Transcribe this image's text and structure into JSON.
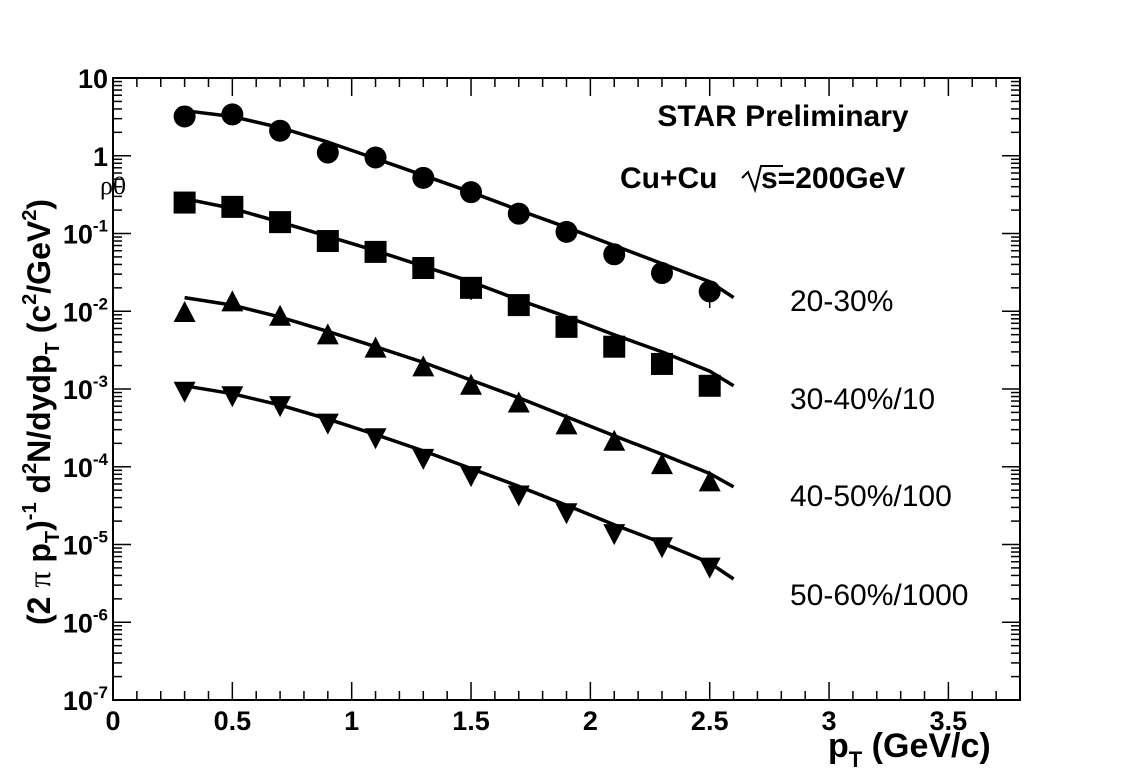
{
  "chart_data": {
    "type": "scatter",
    "title": "",
    "xlabel": "p_T (GeV/c)",
    "xlabel_main": "p",
    "xlabel_sub": "T",
    "xlabel_unit": " (GeV/c)",
    "ylabel": "(2 π p_T)^-1 d^2N/dydp_T (c^2/GeV^2)",
    "xlim": [
      0,
      3.8
    ],
    "ylim": [
      1e-07,
      10
    ],
    "yscale": "log",
    "grid": false,
    "x_ticks": [
      {
        "value": 0,
        "label": "0"
      },
      {
        "value": 0.5,
        "label": "0.5"
      },
      {
        "value": 1,
        "label": "1"
      },
      {
        "value": 1.5,
        "label": "1.5"
      },
      {
        "value": 2,
        "label": "2"
      },
      {
        "value": 2.5,
        "label": "2.5"
      },
      {
        "value": 3,
        "label": "3"
      },
      {
        "value": 3.5,
        "label": "3.5"
      }
    ],
    "y_ticks": [
      {
        "exp": 1,
        "label": "10",
        "sup": ""
      },
      {
        "exp": 0,
        "label": "1",
        "sup": ""
      },
      {
        "exp": -1,
        "label": "10",
        "sup": "-1"
      },
      {
        "exp": -2,
        "label": "10",
        "sup": "-2"
      },
      {
        "exp": -3,
        "label": "10",
        "sup": "-3"
      },
      {
        "exp": -4,
        "label": "10",
        "sup": "-4"
      },
      {
        "exp": -5,
        "label": "10",
        "sup": "-5"
      },
      {
        "exp": -6,
        "label": "10",
        "sup": "-6"
      },
      {
        "exp": -7,
        "label": "10",
        "sup": "-7"
      }
    ],
    "annotations": {
      "experiment": "STAR Preliminary",
      "system": "Cu+Cu",
      "energy": "s=200GeV",
      "particle": "ρ0"
    },
    "series": [
      {
        "name": "20-30%",
        "marker": "circle",
        "x": [
          0.3,
          0.5,
          0.7,
          0.9,
          1.1,
          1.3,
          1.5,
          1.7,
          1.9,
          2.1,
          2.3,
          2.5
        ],
        "y": [
          3.2,
          3.4,
          2.1,
          1.1,
          0.95,
          0.52,
          0.34,
          0.18,
          0.105,
          0.054,
          0.031,
          0.018
        ],
        "err": [
          0,
          0,
          0,
          0,
          0,
          0,
          0,
          0,
          0,
          0,
          0,
          0.007
        ],
        "fit_x": [
          0.3,
          0.5,
          0.7,
          0.9,
          1.1,
          1.3,
          1.5,
          1.7,
          1.9,
          2.1,
          2.3,
          2.5,
          2.6
        ],
        "fit_y": [
          3.8,
          3.2,
          2.3,
          1.5,
          0.92,
          0.56,
          0.34,
          0.2,
          0.12,
          0.07,
          0.041,
          0.024,
          0.015
        ]
      },
      {
        "name": "30-40%/10",
        "marker": "square",
        "x": [
          0.3,
          0.5,
          0.7,
          0.9,
          1.1,
          1.3,
          1.5,
          1.7,
          1.9,
          2.1,
          2.3,
          2.5
        ],
        "y": [
          0.25,
          0.22,
          0.14,
          0.08,
          0.058,
          0.036,
          0.02,
          0.012,
          0.0063,
          0.0035,
          0.0021,
          0.0011
        ],
        "err": [
          0,
          0,
          0,
          0,
          0,
          0,
          0.006,
          0,
          0,
          0,
          0,
          0
        ],
        "fit_x": [
          0.3,
          0.5,
          0.7,
          0.9,
          1.1,
          1.3,
          1.5,
          1.7,
          1.9,
          2.1,
          2.3,
          2.5,
          2.6
        ],
        "fit_y": [
          0.28,
          0.21,
          0.14,
          0.092,
          0.06,
          0.038,
          0.024,
          0.014,
          0.0085,
          0.005,
          0.003,
          0.0017,
          0.0011
        ]
      },
      {
        "name": "40-50%/100",
        "marker": "triangle-up",
        "x": [
          0.3,
          0.5,
          0.7,
          0.9,
          1.1,
          1.3,
          1.5,
          1.7,
          1.9,
          2.1,
          2.3,
          2.5
        ],
        "y": [
          0.0095,
          0.013,
          0.0085,
          0.0049,
          0.0033,
          0.0019,
          0.0011,
          0.00065,
          0.00034,
          0.00021,
          0.000105,
          6.3e-05
        ],
        "err": [
          0,
          0,
          0,
          0,
          0,
          0,
          0,
          0,
          0,
          0,
          0,
          0
        ],
        "fit_x": [
          0.3,
          0.5,
          0.7,
          0.9,
          1.1,
          1.3,
          1.5,
          1.7,
          1.9,
          2.1,
          2.3,
          2.5,
          2.6
        ],
        "fit_y": [
          0.015,
          0.012,
          0.0084,
          0.0055,
          0.0035,
          0.0022,
          0.0013,
          0.00077,
          0.00044,
          0.00025,
          0.000145,
          8.2e-05,
          5.5e-05
        ]
      },
      {
        "name": "50-60%/1000",
        "marker": "triangle-down",
        "x": [
          0.3,
          0.5,
          0.7,
          0.9,
          1.1,
          1.3,
          1.5,
          1.7,
          1.9,
          2.1,
          2.3,
          2.5
        ],
        "y": [
          0.00095,
          0.00083,
          0.00062,
          0.00037,
          0.00024,
          0.00013,
          7.8e-05,
          4.4e-05,
          2.6e-05,
          1.4e-05,
          9.5e-06,
          5.2e-06
        ],
        "err": [
          0,
          0,
          0,
          0,
          0,
          0,
          0,
          0,
          0,
          0,
          0,
          0
        ],
        "fit_x": [
          0.3,
          0.5,
          0.7,
          0.9,
          1.1,
          1.3,
          1.5,
          1.7,
          1.9,
          2.1,
          2.3,
          2.5,
          2.6
        ],
        "fit_y": [
          0.0011,
          0.00087,
          0.00062,
          0.00041,
          0.00026,
          0.00016,
          9.5e-05,
          5.6e-05,
          3.2e-05,
          1.8e-05,
          1.05e-05,
          5.8e-06,
          3.6e-06
        ]
      }
    ]
  }
}
